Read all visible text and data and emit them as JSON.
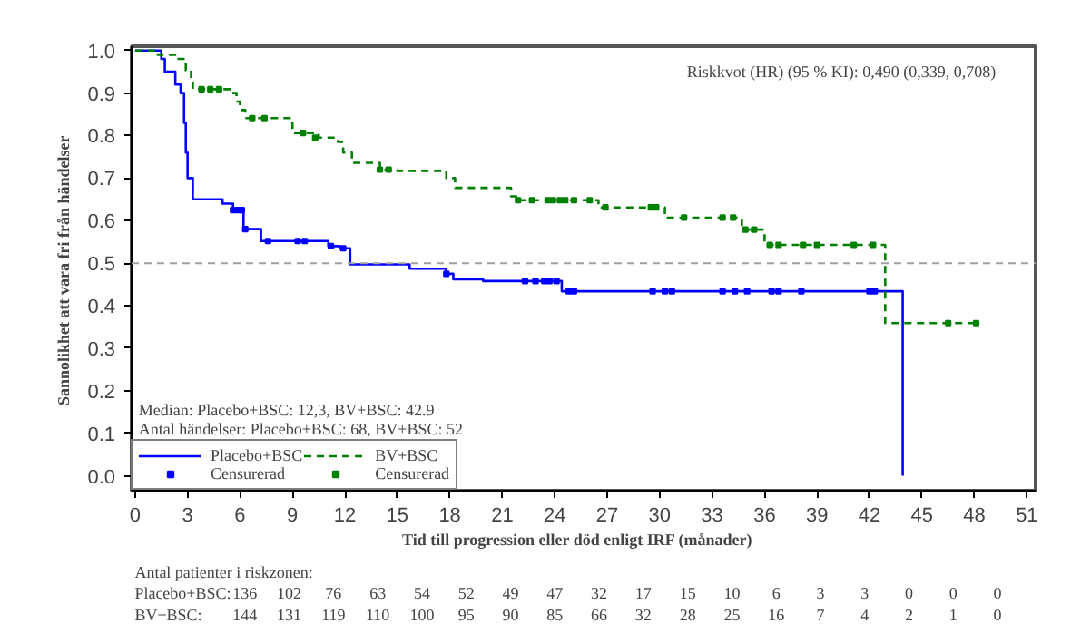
{
  "chart_data": {
    "type": "step",
    "xlabel": "Tid  till progression eller död  enligt IRF  (månader)",
    "ylabel": "Sannolikhet att vara fri från  händelser",
    "xlim": [
      -0.2,
      51.5
    ],
    "ylim": [
      -0.035,
      1.01
    ],
    "xticks": [
      0,
      3,
      6,
      9,
      12,
      15,
      18,
      21,
      24,
      27,
      30,
      33,
      36,
      39,
      42,
      45,
      48,
      51
    ],
    "yticks": [
      {
        "value": 0,
        "label": "0.0"
      },
      {
        "value": 0.1,
        "label": "0.1"
      },
      {
        "value": 0.2,
        "label": "0.2"
      },
      {
        "value": 0.3,
        "label": "0.3"
      },
      {
        "value": 0.4,
        "label": "0.4"
      },
      {
        "value": 0.5,
        "label": "0.5"
      },
      {
        "value": 0.6,
        "label": "0.6"
      },
      {
        "value": 0.7,
        "label": "0.7"
      },
      {
        "value": 0.8,
        "label": "0.8"
      },
      {
        "value": 0.9,
        "label": "0.9"
      },
      {
        "value": 1.0,
        "label": "1.0"
      }
    ],
    "grid": false,
    "legend": "bottom left",
    "ref_lines": [
      {
        "axis": "y",
        "value": 0.5,
        "color": "#a0a0a0",
        "line_style": "dashed"
      }
    ],
    "series": [
      {
        "name": "Placebo+BSC",
        "color": "#0000ff",
        "line_style": "solid",
        "x": [
          0,
          1.5,
          1.7,
          2.3,
          2.6,
          2.8,
          2.9,
          3.0,
          3.3,
          5.0,
          5.6,
          6.2,
          7.2,
          11.05,
          11.7,
          12.3,
          15.7,
          17.8,
          18.2,
          19.9,
          24.4,
          43.9,
          43.9
        ],
        "values": [
          1.0,
          0.98,
          0.95,
          0.92,
          0.9,
          0.83,
          0.76,
          0.7,
          0.65,
          0.64,
          0.625,
          0.58,
          0.552,
          0.54,
          0.535,
          0.497,
          0.487,
          0.475,
          0.462,
          0.458,
          0.434,
          0.434,
          0.0
        ]
      },
      {
        "name": "Censurerad",
        "color": "#0000ff",
        "type": "scatter",
        "marker": "square",
        "x": [
          5.6,
          5.9,
          6.1,
          6.3,
          7.6,
          9.3,
          9.7,
          11.2,
          11.9,
          17.8,
          22.3,
          22.9,
          23.4,
          23.7,
          24.1,
          24.8,
          25.1,
          29.6,
          30.3,
          30.7,
          33.6,
          34.3,
          35.0,
          36.4,
          36.8,
          38.1,
          42.0,
          42.3
        ],
        "values": [
          0.625,
          0.625,
          0.625,
          0.58,
          0.552,
          0.552,
          0.552,
          0.54,
          0.535,
          0.475,
          0.458,
          0.458,
          0.458,
          0.458,
          0.458,
          0.434,
          0.434,
          0.434,
          0.434,
          0.434,
          0.434,
          0.434,
          0.434,
          0.434,
          0.434,
          0.434,
          0.434,
          0.434
        ]
      },
      {
        "name": "BV+BSC",
        "color": "#008000",
        "line_style": "dashed",
        "x": [
          0,
          1.3,
          2.4,
          2.9,
          3.2,
          3.3,
          5.5,
          5.8,
          6.0,
          6.3,
          9.0,
          10.5,
          11.6,
          11.9,
          12.4,
          14.0,
          15.0,
          17.8,
          18.3,
          21.5,
          21.8,
          26.5,
          30.3,
          34.7,
          36.0,
          42.9,
          48.2
        ],
        "values": [
          1.0,
          0.99,
          0.98,
          0.953,
          0.93,
          0.909,
          0.9,
          0.88,
          0.86,
          0.841,
          0.806,
          0.795,
          0.785,
          0.76,
          0.736,
          0.72,
          0.717,
          0.7,
          0.677,
          0.657,
          0.648,
          0.631,
          0.607,
          0.579,
          0.543,
          0.359,
          0.359
        ]
      },
      {
        "name": "Censurerad",
        "color": "#008000",
        "type": "scatter",
        "marker": "square",
        "x": [
          3.8,
          4.3,
          4.8,
          6.7,
          7.4,
          9.6,
          10.3,
          14.0,
          14.5,
          21.9,
          22.7,
          23.6,
          23.9,
          24.3,
          24.6,
          25.1,
          26.0,
          26.9,
          29.5,
          29.8,
          31.4,
          33.6,
          34.2,
          34.9,
          35.4,
          36.3,
          36.8,
          38.2,
          39.0,
          41.1,
          42.2,
          46.5,
          48.1
        ],
        "values": [
          0.909,
          0.909,
          0.909,
          0.841,
          0.841,
          0.806,
          0.795,
          0.72,
          0.72,
          0.648,
          0.648,
          0.648,
          0.648,
          0.648,
          0.648,
          0.648,
          0.648,
          0.631,
          0.631,
          0.631,
          0.607,
          0.607,
          0.607,
          0.579,
          0.579,
          0.543,
          0.543,
          0.543,
          0.543,
          0.543,
          0.543,
          0.359,
          0.359
        ]
      }
    ],
    "annotations": [
      "Riskkvot (HR) (95 % KI): 0,490  (0,339,  0,708)",
      "Median: Placebo+BSC: 12,3,  BV+BSC:  42.9",
      "Antal händelser: Placebo+BSC: 68, BV+BSC:  52",
      "Antal patienter i riskzonen:",
      "Placebo+BSC:",
      "136 102 76 63 54 52 49 47 32 17 15 10 6 3 3 0 0 0",
      "BV+BSC:",
      "144 131 119 110 100 95 90 85 66 32 28 25 16 7 4 2 1 0"
    ]
  }
}
